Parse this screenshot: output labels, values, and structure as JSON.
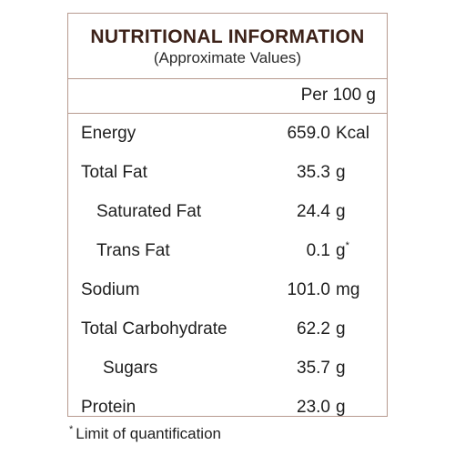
{
  "label": {
    "title": "NUTRITIONAL INFORMATION",
    "subtitle": "(Approximate Values)",
    "per_label": "Per 100 g",
    "rows": [
      {
        "name": "Energy",
        "value": "659.0",
        "unit": "Kcal",
        "mark": ""
      },
      {
        "name": "Total Fat",
        "value": "35.3",
        "unit": "g",
        "mark": ""
      },
      {
        "name": "Saturated Fat",
        "value": "24.4",
        "unit": "g",
        "mark": ""
      },
      {
        "name": "Trans Fat",
        "value": "0.1",
        "unit": "g",
        "mark": "*"
      },
      {
        "name": "Sodium",
        "value": "101.0",
        "unit": "mg",
        "mark": ""
      },
      {
        "name": "Total Carbohydrate",
        "value": "62.2",
        "unit": "g",
        "mark": ""
      },
      {
        "name": "Sugars",
        "value": "35.7",
        "unit": "g",
        "mark": ""
      },
      {
        "name": "Protein",
        "value": "23.0",
        "unit": "g",
        "mark": ""
      }
    ],
    "footnote": {
      "mark": "*",
      "text": "Limit of quantification"
    },
    "colors": {
      "border": "#b79a8f",
      "title": "#3d2219",
      "text": "#1e1e1e"
    }
  }
}
